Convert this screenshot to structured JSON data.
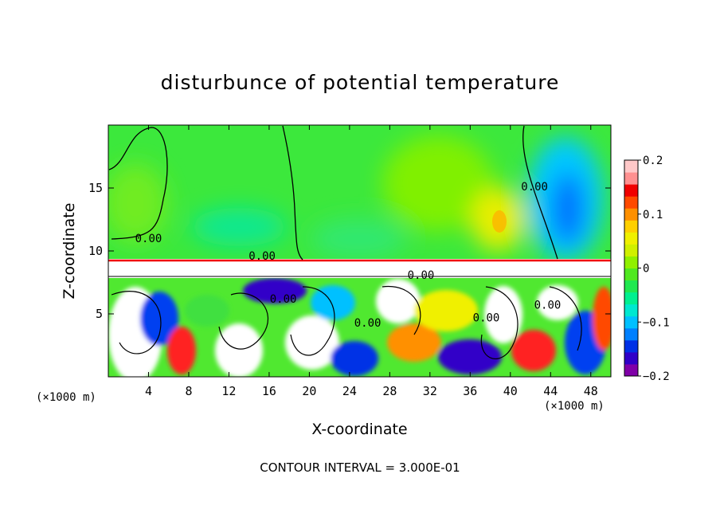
{
  "chart_data": {
    "type": "heatmap",
    "title": "disturbunce of potential temperature",
    "xlabel": "X-coordinate",
    "ylabel": "Z-coordinate",
    "x_unit": "(×1000 m)",
    "y_unit": "(×1000 m)",
    "xlim": [
      0,
      50
    ],
    "ylim": [
      0,
      20
    ],
    "x_ticks": [
      4,
      8,
      12,
      16,
      20,
      24,
      28,
      32,
      36,
      40,
      44,
      48
    ],
    "y_ticks": [
      5,
      10,
      15
    ],
    "colorbar": {
      "range": [
        -0.2,
        0.2
      ],
      "tick_values": [
        0.2,
        0.1,
        0,
        -0.1,
        -0.2
      ],
      "tick_labels": [
        "0.2",
        "0.1",
        "0",
        "−0.1",
        "−0.2"
      ],
      "colors": [
        "#8000a8",
        "#3000c8",
        "#0030e6",
        "#0080ff",
        "#00c0ff",
        "#00e8d0",
        "#00f090",
        "#20e850",
        "#50e820",
        "#90f000",
        "#d0f000",
        "#f0f000",
        "#ffd000",
        "#ff9000",
        "#ff4a00",
        "#f00000",
        "#ff9090",
        "#ffc8c8"
      ]
    },
    "contour_label": "0.00",
    "contour_label_positions": [
      [
        4.0,
        10.7
      ],
      [
        15.3,
        9.3
      ],
      [
        17.4,
        5.9
      ],
      [
        25.8,
        4.0
      ],
      [
        31.1,
        7.8
      ],
      [
        37.6,
        4.4
      ],
      [
        42.4,
        14.8
      ],
      [
        43.7,
        5.4
      ]
    ],
    "note_text": "CONTOUR INTERVAL = 3.000E-01"
  }
}
